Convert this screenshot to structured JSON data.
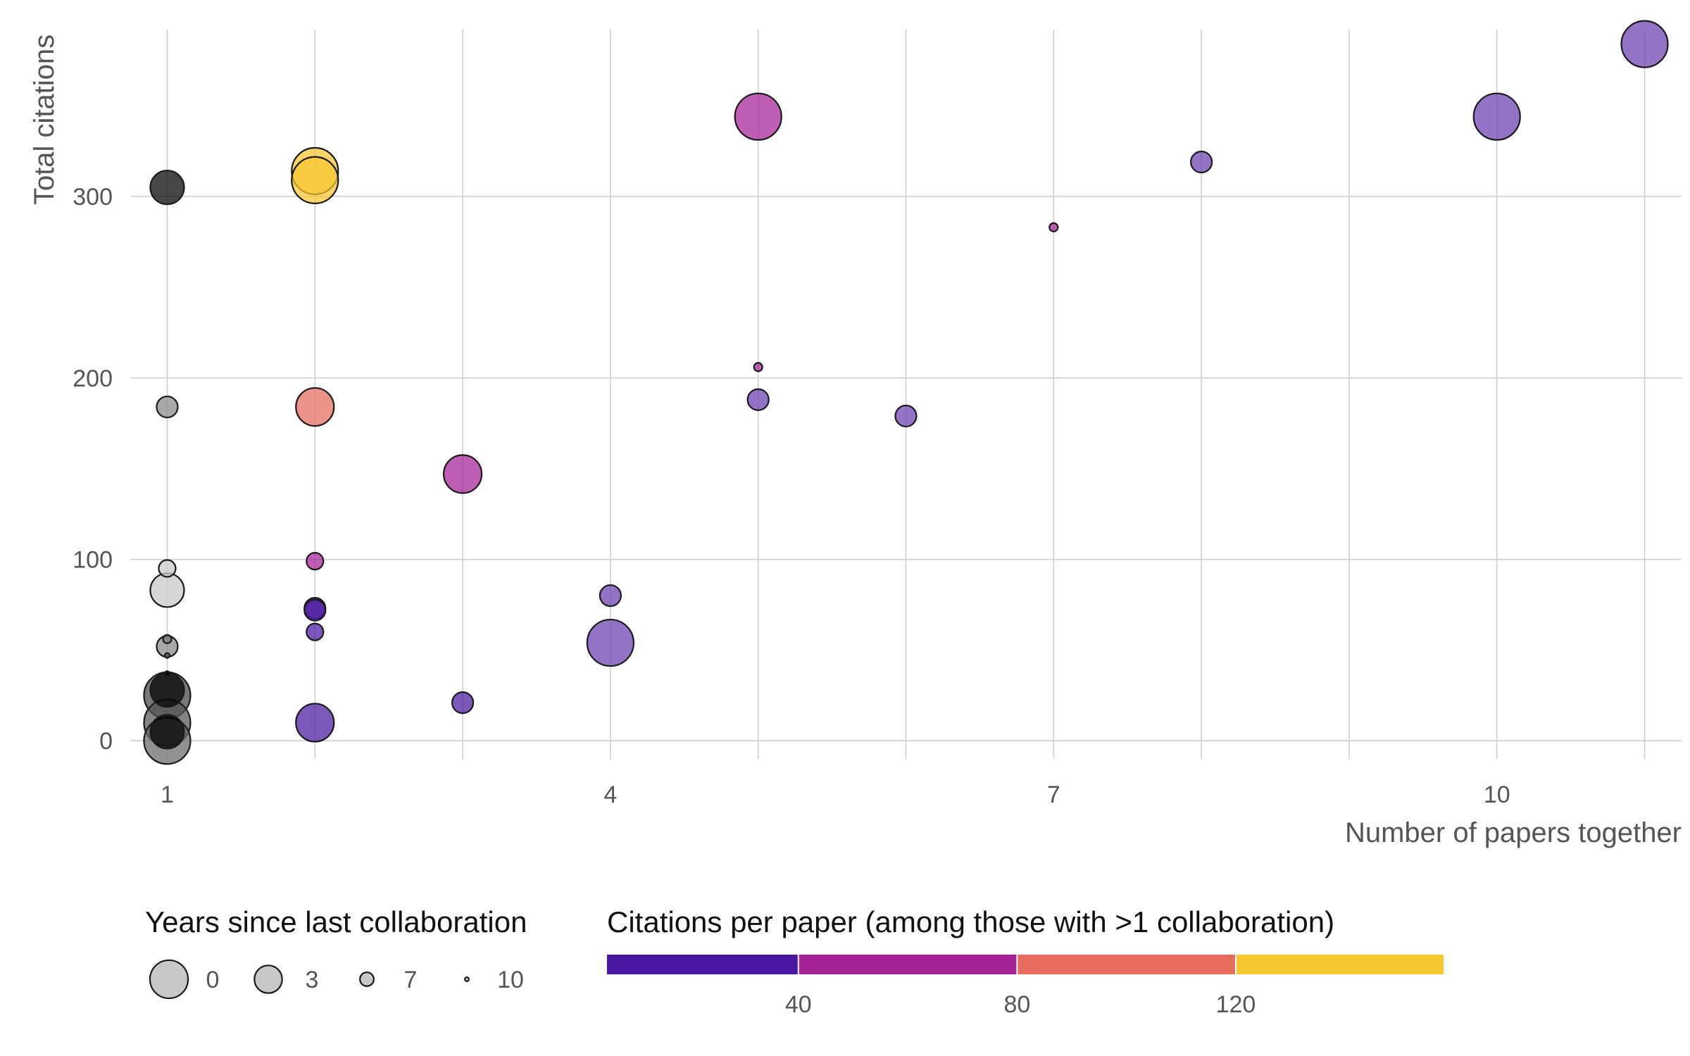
{
  "chart_data": {
    "type": "scatter",
    "xlabel": "Number of papers together",
    "ylabel": "Total citations",
    "xlim": [
      0.75,
      11.25
    ],
    "ylim": [
      -10,
      392
    ],
    "x_ticks": [
      1,
      4,
      7,
      10
    ],
    "x_gridlines": [
      1,
      2,
      3,
      4,
      5,
      6,
      7,
      8,
      9,
      10,
      11
    ],
    "y_ticks": [
      0,
      100,
      200,
      300
    ],
    "grid": true,
    "legend_position": "bottom",
    "size_legend": {
      "title": "Years since last collaboration",
      "values": [
        0,
        3,
        7,
        10
      ]
    },
    "color_legend": {
      "title": "Citations per paper (among those with >1 collaboration)",
      "ticks": [
        40,
        80,
        120
      ],
      "range": [
        5,
        158
      ],
      "colors": [
        "#4a17a0",
        "#a62098",
        "#e56b5d",
        "#f8c631"
      ]
    },
    "points": [
      {
        "x": 11,
        "y": 384,
        "years": 0,
        "color": "#6a3db0"
      },
      {
        "x": 10,
        "y": 344,
        "years": 0,
        "color": "#6a3db0"
      },
      {
        "x": 8,
        "y": 319,
        "years": 6,
        "color": "#6a3db0"
      },
      {
        "x": 7,
        "y": 283,
        "years": 9,
        "color": "#a62098"
      },
      {
        "x": 6,
        "y": 179,
        "years": 6,
        "color": "#6a3db0"
      },
      {
        "x": 5,
        "y": 344,
        "years": 0,
        "color": "#a62098"
      },
      {
        "x": 5,
        "y": 206,
        "years": 9,
        "color": "#a62098"
      },
      {
        "x": 5,
        "y": 188,
        "years": 6,
        "color": "#6a3db0"
      },
      {
        "x": 4,
        "y": 80,
        "years": 6,
        "color": "#6a3db0"
      },
      {
        "x": 4,
        "y": 54,
        "years": 0,
        "color": "#6a3db0"
      },
      {
        "x": 3,
        "y": 147,
        "years": 2,
        "color": "#a62098"
      },
      {
        "x": 3,
        "y": 21,
        "years": 6,
        "color": "#4a17a0"
      },
      {
        "x": 2,
        "y": 314,
        "years": 0,
        "color": "#f8c631"
      },
      {
        "x": 2,
        "y": 309,
        "years": 0,
        "color": "#f8c631"
      },
      {
        "x": 2,
        "y": 184,
        "years": 2,
        "color": "#e56b5d"
      },
      {
        "x": 2,
        "y": 99,
        "years": 7,
        "color": "#a62098"
      },
      {
        "x": 2,
        "y": 73,
        "years": 6,
        "color": "#4a17a0"
      },
      {
        "x": 2,
        "y": 72,
        "years": 6,
        "color": "#4a17a0"
      },
      {
        "x": 2,
        "y": 60,
        "years": 7,
        "color": "#4a17a0"
      },
      {
        "x": 2,
        "y": 10,
        "years": 2,
        "color": "#4a17a0"
      },
      {
        "x": 1,
        "y": 305,
        "years": 3,
        "color": "#000000"
      },
      {
        "x": 1,
        "y": 184,
        "years": 6,
        "color": "#888888"
      },
      {
        "x": 1,
        "y": 95,
        "years": 7,
        "color": "#c8c8c8"
      },
      {
        "x": 1,
        "y": 83,
        "years": 3,
        "color": "#c8c8c8"
      },
      {
        "x": 1,
        "y": 56,
        "years": 9,
        "color": "#777777"
      },
      {
        "x": 1,
        "y": 52,
        "years": 6,
        "color": "#888888"
      },
      {
        "x": 1,
        "y": 47,
        "years": 10,
        "color": "#555555"
      },
      {
        "x": 1,
        "y": 37,
        "years": 10,
        "color": "#000000"
      },
      {
        "x": 1,
        "y": 28,
        "years": 3,
        "color": "#000000"
      },
      {
        "x": 1,
        "y": 25,
        "years": 0,
        "color": "#444444"
      },
      {
        "x": 1,
        "y": 10,
        "years": 0,
        "color": "#555555"
      },
      {
        "x": 1,
        "y": 5,
        "years": 3,
        "color": "#000000"
      },
      {
        "x": 1,
        "y": 0,
        "years": 0,
        "color": "#666666"
      }
    ]
  }
}
